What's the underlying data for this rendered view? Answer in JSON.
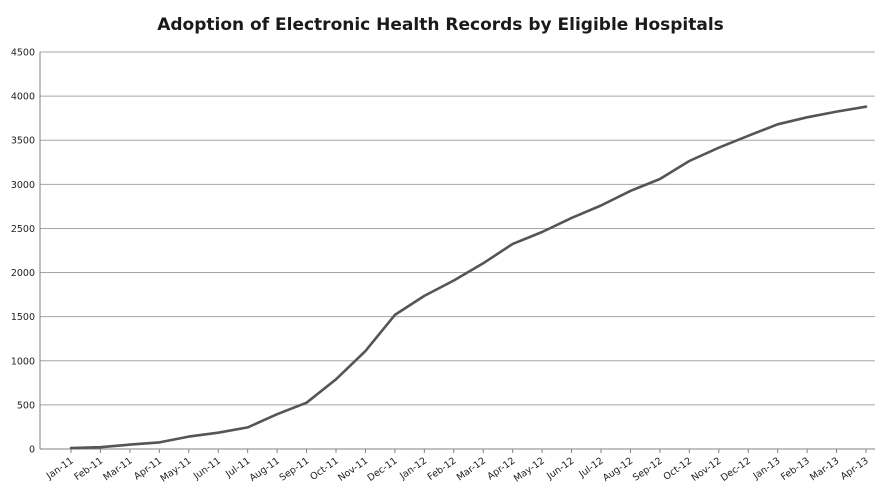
{
  "chart_data": {
    "type": "line",
    "title": "Adoption of Electronic Health Records by Eligible Hospitals",
    "xlabel": "",
    "ylabel": "",
    "ylim": [
      0,
      4500
    ],
    "yticks": [
      0,
      500,
      1000,
      1500,
      2000,
      2500,
      3000,
      3500,
      4000,
      4500
    ],
    "grid": true,
    "legend": "none",
    "line_color": "#555555",
    "categories": [
      "Jan-11",
      "Feb-11",
      "Mar-11",
      "Apr-11",
      "May-11",
      "Jun-11",
      "Jul-11",
      "Aug-11",
      "Sep-11",
      "Oct-11",
      "Nov-11",
      "Dec-11",
      "Jan-12",
      "Feb-12",
      "Mar-12",
      "Apr-12",
      "May-12",
      "Jun-12",
      "Jul-12",
      "Aug-12",
      "Sep-12",
      "Oct-12",
      "Nov-12",
      "Dec-12",
      "Jan-13",
      "Feb-13",
      "Mar-13",
      "Apr-13"
    ],
    "series": [
      {
        "values": [
          10,
          20,
          50,
          75,
          140,
          185,
          245,
          395,
          525,
          790,
          1110,
          1520,
          1735,
          1910,
          2105,
          2325,
          2460,
          2620,
          2760,
          2925,
          3060,
          3265,
          3415,
          3550,
          3680,
          3760,
          3825,
          3880
        ]
      }
    ]
  }
}
